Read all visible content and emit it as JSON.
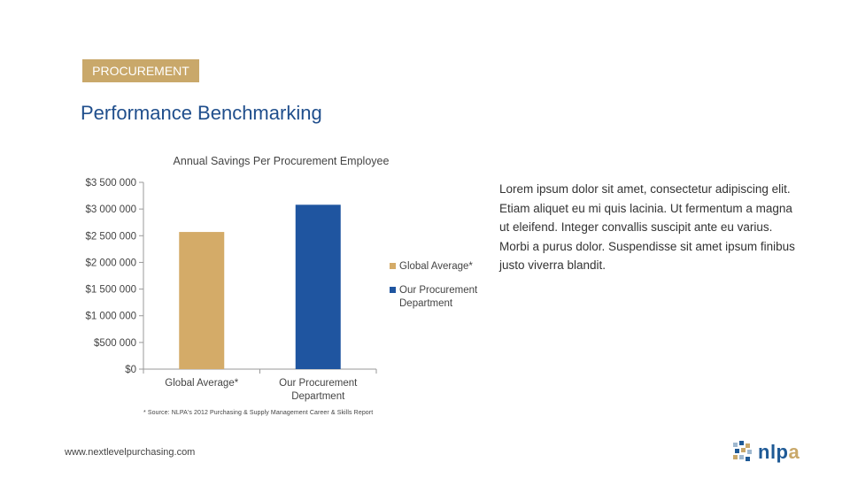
{
  "header": {
    "tag": "PROCUREMENT",
    "title": "Performance Benchmarking"
  },
  "chart_data": {
    "type": "bar",
    "title": "Annual Savings Per Procurement Employee",
    "categories": [
      "Global Average*",
      "Our Procurement Department"
    ],
    "values": [
      2570000,
      3080000
    ],
    "colors": [
      "#d4ab68",
      "#1f55a0"
    ],
    "y_ticks": [
      "$3 500 000",
      "$3 000 000",
      "$2 500 000",
      "$2 000 000",
      "$1 500 000",
      "$1 000 000",
      "$500 000",
      "$0"
    ],
    "ylim": [
      0,
      3500000
    ],
    "grid": false,
    "legend": "right",
    "legend_entries": [
      "Global Average*",
      "Our Procurement Department"
    ]
  },
  "body_text": "Lorem ipsum dolor sit amet, consectetur adipiscing elit. Etiam aliquet eu mi quis lacinia. Ut fermentum a magna ut eleifend. Integer convallis suscipit ante eu varius. Morbi a purus dolor. Suspendisse sit amet ipsum finibus justo viverra blandit.",
  "footnote": "* Source: NLPA's 2012 Purchasing & Supply Management Career & Skills Report",
  "footer": {
    "url": "www.nextlevelpurchasing.com",
    "logo_text": "nlpa"
  }
}
